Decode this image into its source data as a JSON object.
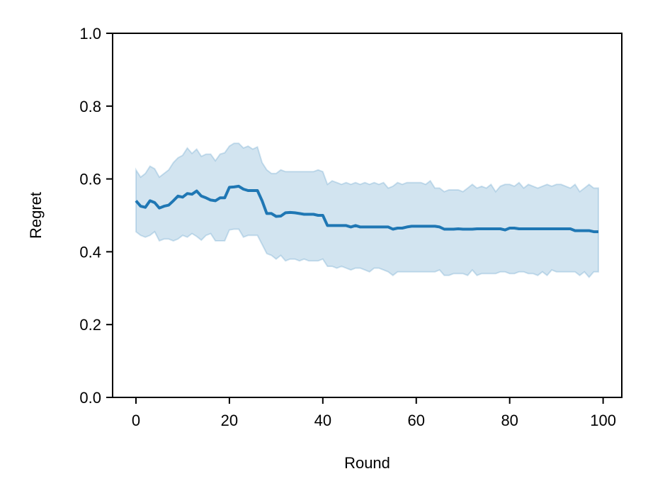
{
  "chart_data": {
    "type": "line",
    "xlabel": "Round",
    "ylabel": "Regret",
    "xlim": [
      -5,
      104
    ],
    "ylim": [
      0.0,
      1.0
    ],
    "x_ticks": [
      0,
      20,
      40,
      60,
      80,
      100
    ],
    "x_tick_labels": [
      "0",
      "20",
      "40",
      "60",
      "80",
      "100"
    ],
    "y_ticks": [
      0.0,
      0.2,
      0.4,
      0.6,
      0.8,
      1.0
    ],
    "y_tick_labels": [
      "0.0",
      "0.2",
      "0.4",
      "0.6",
      "0.8",
      "1.0"
    ],
    "grid": false,
    "colors": {
      "line": "#1f77b4",
      "band": "#1f77b4"
    },
    "series": [
      {
        "x": [
          0,
          1,
          2,
          3,
          4,
          5,
          6,
          7,
          8,
          9,
          10,
          11,
          12,
          13,
          14,
          15,
          16,
          17,
          18,
          19,
          20,
          21,
          22,
          23,
          24,
          25,
          26,
          27,
          28,
          29,
          30,
          31,
          32,
          33,
          34,
          35,
          36,
          37,
          38,
          39,
          40,
          41,
          42,
          43,
          44,
          45,
          46,
          47,
          48,
          49,
          50,
          51,
          52,
          53,
          54,
          55,
          56,
          57,
          58,
          59,
          60,
          61,
          62,
          63,
          64,
          65,
          66,
          67,
          68,
          69,
          70,
          71,
          72,
          73,
          74,
          75,
          76,
          77,
          78,
          79,
          80,
          81,
          82,
          83,
          84,
          85,
          86,
          87,
          88,
          89,
          90,
          91,
          92,
          93,
          94,
          95,
          96,
          97,
          98,
          99
        ],
        "mean": [
          0.54,
          0.525,
          0.522,
          0.54,
          0.535,
          0.52,
          0.525,
          0.528,
          0.54,
          0.553,
          0.55,
          0.56,
          0.558,
          0.567,
          0.553,
          0.548,
          0.542,
          0.54,
          0.548,
          0.548,
          0.577,
          0.578,
          0.58,
          0.572,
          0.568,
          0.568,
          0.568,
          0.54,
          0.505,
          0.505,
          0.497,
          0.498,
          0.507,
          0.508,
          0.507,
          0.505,
          0.503,
          0.503,
          0.503,
          0.5,
          0.5,
          0.472,
          0.472,
          0.472,
          0.472,
          0.472,
          0.468,
          0.472,
          0.468,
          0.468,
          0.468,
          0.468,
          0.468,
          0.468,
          0.468,
          0.462,
          0.465,
          0.465,
          0.468,
          0.47,
          0.47,
          0.47,
          0.47,
          0.47,
          0.47,
          0.468,
          0.462,
          0.462,
          0.462,
          0.463,
          0.462,
          0.462,
          0.462,
          0.463,
          0.463,
          0.463,
          0.463,
          0.463,
          0.463,
          0.46,
          0.465,
          0.465,
          0.463,
          0.463,
          0.463,
          0.463,
          0.463,
          0.463,
          0.463,
          0.463,
          0.463,
          0.463,
          0.463,
          0.463,
          0.458,
          0.458,
          0.458,
          0.458,
          0.455,
          0.455
        ],
        "upper": [
          0.625,
          0.605,
          0.615,
          0.635,
          0.628,
          0.605,
          0.615,
          0.625,
          0.645,
          0.658,
          0.665,
          0.685,
          0.67,
          0.682,
          0.662,
          0.668,
          0.668,
          0.65,
          0.668,
          0.672,
          0.69,
          0.698,
          0.698,
          0.685,
          0.69,
          0.682,
          0.688,
          0.645,
          0.625,
          0.615,
          0.615,
          0.625,
          0.62,
          0.62,
          0.62,
          0.62,
          0.62,
          0.62,
          0.62,
          0.625,
          0.62,
          0.585,
          0.595,
          0.59,
          0.585,
          0.59,
          0.585,
          0.59,
          0.585,
          0.59,
          0.585,
          0.59,
          0.585,
          0.59,
          0.575,
          0.58,
          0.59,
          0.585,
          0.59,
          0.59,
          0.59,
          0.59,
          0.585,
          0.595,
          0.575,
          0.575,
          0.565,
          0.57,
          0.57,
          0.57,
          0.565,
          0.575,
          0.585,
          0.575,
          0.58,
          0.575,
          0.585,
          0.565,
          0.58,
          0.585,
          0.585,
          0.58,
          0.59,
          0.575,
          0.585,
          0.58,
          0.575,
          0.58,
          0.585,
          0.58,
          0.585,
          0.585,
          0.58,
          0.575,
          0.585,
          0.565,
          0.575,
          0.585,
          0.575,
          0.575
        ],
        "lower": [
          0.455,
          0.445,
          0.44,
          0.445,
          0.455,
          0.43,
          0.435,
          0.435,
          0.43,
          0.435,
          0.445,
          0.44,
          0.45,
          0.442,
          0.432,
          0.445,
          0.45,
          0.43,
          0.43,
          0.43,
          0.46,
          0.462,
          0.462,
          0.44,
          0.445,
          0.445,
          0.445,
          0.42,
          0.395,
          0.39,
          0.38,
          0.39,
          0.375,
          0.38,
          0.38,
          0.375,
          0.38,
          0.375,
          0.375,
          0.375,
          0.38,
          0.36,
          0.36,
          0.355,
          0.36,
          0.355,
          0.35,
          0.355,
          0.355,
          0.35,
          0.345,
          0.355,
          0.355,
          0.35,
          0.345,
          0.335,
          0.345,
          0.345,
          0.345,
          0.345,
          0.345,
          0.345,
          0.345,
          0.345,
          0.345,
          0.35,
          0.335,
          0.335,
          0.34,
          0.34,
          0.34,
          0.335,
          0.35,
          0.335,
          0.34,
          0.34,
          0.34,
          0.34,
          0.345,
          0.345,
          0.34,
          0.34,
          0.345,
          0.345,
          0.34,
          0.34,
          0.335,
          0.345,
          0.335,
          0.35,
          0.345,
          0.345,
          0.345,
          0.345,
          0.345,
          0.335,
          0.345,
          0.33,
          0.345,
          0.345
        ]
      }
    ]
  }
}
